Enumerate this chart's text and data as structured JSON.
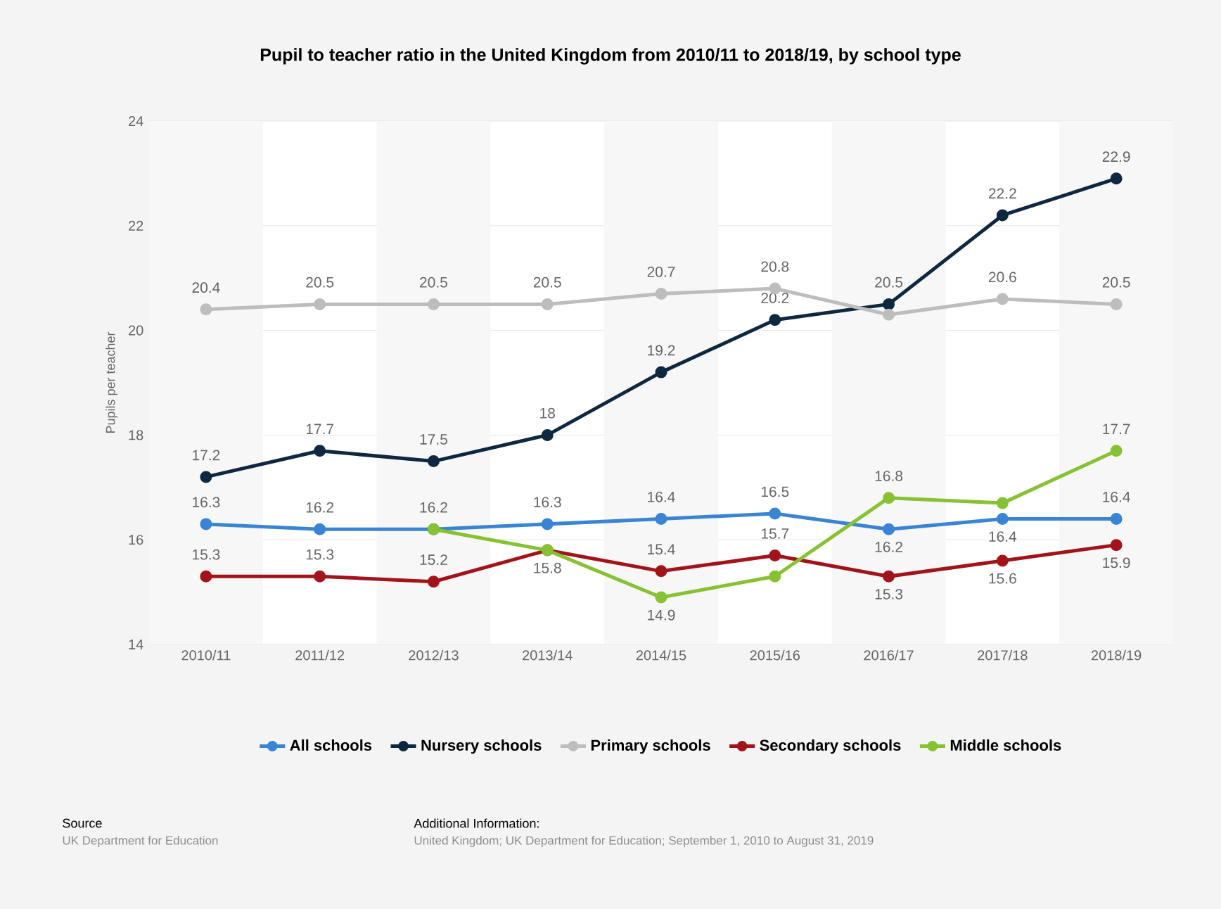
{
  "chart_data": {
    "type": "line",
    "title": "Pupil to teacher ratio in the United Kingdom from 2010/11 to 2018/19, by school type",
    "ylabel": "Pupils per teacher",
    "categories": [
      "2010/11",
      "2011/12",
      "2012/13",
      "2013/14",
      "2014/15",
      "2015/16",
      "2016/17",
      "2017/18",
      "2018/19"
    ],
    "ylim": [
      14,
      24
    ],
    "yticks": [
      14,
      16,
      18,
      20,
      22,
      24
    ],
    "grid": "y",
    "legend": "bottom",
    "marker": "circle",
    "line_style": "solid",
    "series": [
      {
        "name": "All schools",
        "color": "#3a84d6",
        "values": [
          16.3,
          16.2,
          16.2,
          16.3,
          16.4,
          16.5,
          16.2,
          16.4,
          16.4
        ],
        "value_labels": [
          "16.3",
          "16.2",
          "16.2",
          "16.3",
          "16.4",
          "16.5",
          "16.2",
          "16.4",
          "16.4"
        ]
      },
      {
        "name": "Nursery schools",
        "color": "#0e2841",
        "values": [
          17.2,
          17.7,
          17.5,
          18,
          19.2,
          20.2,
          20.5,
          22.2,
          22.9
        ],
        "value_labels": [
          "17.2",
          "17.7",
          "17.5",
          "18",
          "19.2",
          "20.2",
          "20.5",
          "22.2",
          "22.9"
        ]
      },
      {
        "name": "Primary schools",
        "color": "#bdbdbd",
        "values": [
          20.4,
          20.5,
          20.5,
          20.5,
          20.7,
          20.8,
          20.3,
          20.6,
          20.5
        ],
        "value_labels": [
          "20.4",
          "20.5",
          "20.5",
          "20.5",
          "20.7",
          "20.8",
          null,
          "20.6",
          "20.5"
        ]
      },
      {
        "name": "Secondary schools",
        "color": "#a3131a",
        "values": [
          15.3,
          15.3,
          15.2,
          15.8,
          15.4,
          15.7,
          15.3,
          15.6,
          15.9
        ],
        "value_labels": [
          "15.3",
          "15.3",
          "15.2",
          "15.8",
          "15.4",
          "15.7",
          "15.3",
          "15.6",
          "15.9"
        ]
      },
      {
        "name": "Middle schools",
        "color": "#86c232",
        "values": [
          null,
          null,
          16.2,
          15.8,
          14.9,
          15.3,
          16.8,
          16.7,
          17.7
        ],
        "value_labels": [
          null,
          null,
          null,
          null,
          "14.9",
          null,
          "16.8",
          null,
          "17.7"
        ]
      }
    ],
    "annotations": [
      "Source",
      "UK Department for Education",
      "Additional Information:",
      "United Kingdom; UK Department for Education; September 1, 2010 to August 31, 2019"
    ]
  }
}
